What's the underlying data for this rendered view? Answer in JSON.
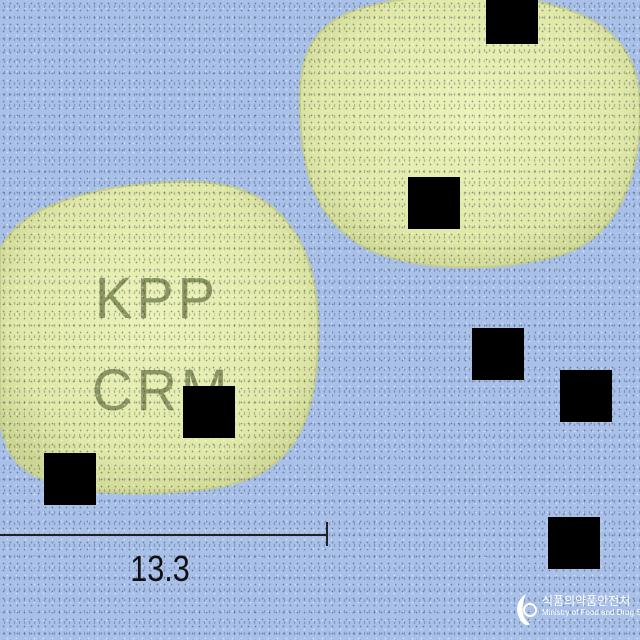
{
  "pill": {
    "imprint_line1": "KPP",
    "imprint_line2": "CRM"
  },
  "scale": {
    "label": "13.3"
  },
  "watermark": {
    "korean": "식품의약품안전처",
    "english": "Ministry of Food and Drug Safety"
  },
  "colors": {
    "background": "#a9c1e9",
    "pill": "#e3ebad",
    "imprint": "#8c9663"
  }
}
